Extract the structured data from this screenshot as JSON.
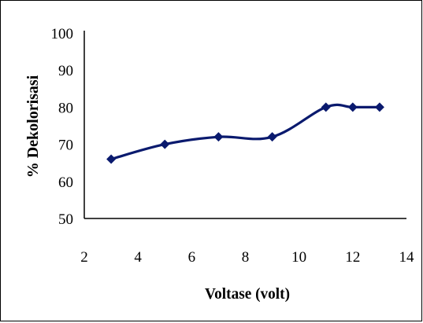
{
  "chart_data": {
    "type": "line",
    "title": "",
    "xlabel": "Voltase (volt)",
    "ylabel": "% Dekolorisasi",
    "xlim": [
      2,
      14
    ],
    "ylim": [
      50,
      100
    ],
    "x_ticks": [
      "2",
      "4",
      "6",
      "8",
      "10",
      "12",
      "14"
    ],
    "y_ticks": [
      "50",
      "60",
      "70",
      "80",
      "90",
      "100"
    ],
    "series": [
      {
        "x": [
          3,
          5,
          7,
          9,
          11,
          12,
          13
        ],
        "y": [
          66,
          70,
          72,
          72,
          80,
          80,
          80
        ]
      }
    ],
    "line_color": "#0a1a6e",
    "marker": "diamond",
    "smooth": true,
    "grid": false,
    "legend": "none"
  }
}
